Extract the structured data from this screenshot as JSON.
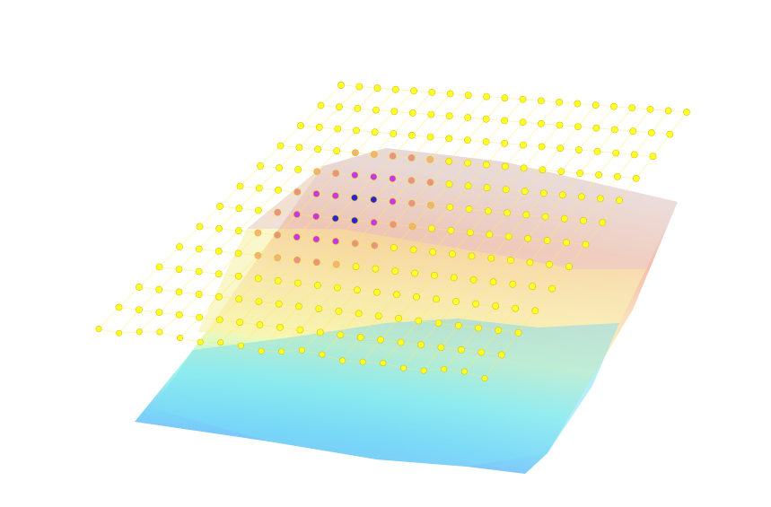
{
  "scene": {
    "background_color": "#ffffff",
    "graph_grid": {
      "rows": 13,
      "cols": 20
    },
    "node_colors": {
      "default": "#ffff2a",
      "light_orange": "#f7b27a",
      "salmon": "#ee8f8f",
      "magenta": "#cc33ee",
      "blue": "#2a24d6"
    },
    "edge_color": "#ffea66",
    "terrain_colormap": [
      "#5a78ff",
      "#49c8f3",
      "#8ff2e6",
      "#fff3a1",
      "#f3b08b",
      "#dcd9e7"
    ]
  }
}
